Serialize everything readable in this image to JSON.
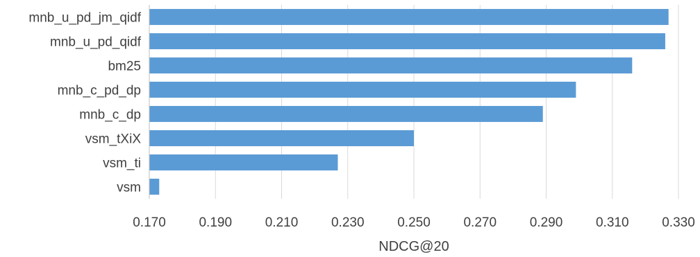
{
  "chart_data": {
    "type": "bar",
    "orientation": "horizontal",
    "title": "",
    "xlabel": "NDCG@20",
    "ylabel": "",
    "categories": [
      "mnb_u_pd_jm_qidf",
      "mnb_u_pd_qidf",
      "bm25",
      "mnb_c_pd_dp",
      "mnb_c_dp",
      "vsm_tXiX",
      "vsm_ti",
      "vsm"
    ],
    "series": [
      {
        "values": [
          0.327,
          0.326,
          0.316,
          0.299,
          0.289,
          0.25,
          0.227,
          0.173
        ]
      }
    ],
    "xlim": [
      0.17,
      0.33
    ],
    "xticks": [
      "0.170",
      "0.190",
      "0.210",
      "0.230",
      "0.250",
      "0.270",
      "0.290",
      "0.310",
      "0.330"
    ],
    "grid": true,
    "legend": "none",
    "bar_color": "#5b9bd5"
  }
}
